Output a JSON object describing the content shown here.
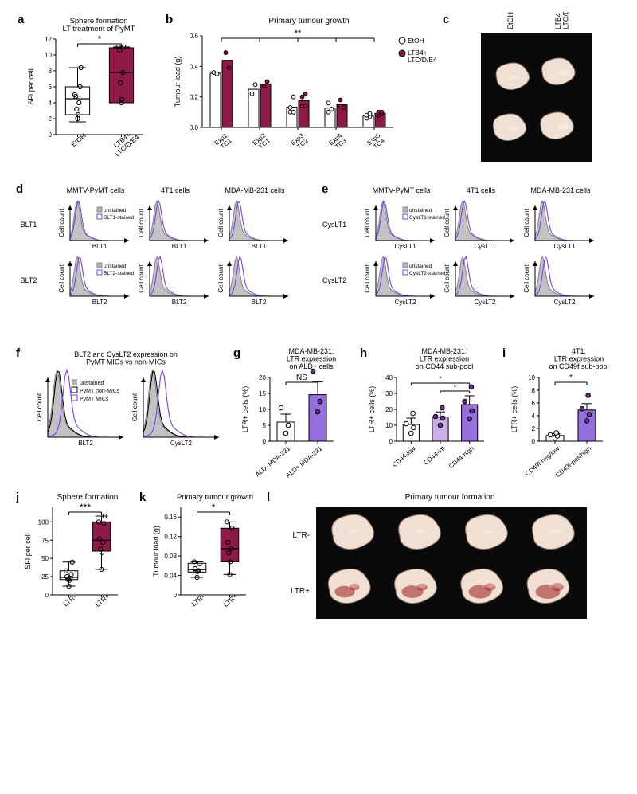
{
  "colors": {
    "accent": "#8d1a47",
    "accent_light": "#b97fa7",
    "purple_fill": "#9370db",
    "purple_light": "#c9aee9",
    "grey_hist": "#b3b3b3",
    "black": "#000000",
    "purple_line": "#7b3ff2",
    "photo_bg": "#0a0a0a"
  },
  "a": {
    "title": "Sphere formation\nLT treatment of PyMT",
    "ylabel": "SFI per cell",
    "groups": [
      "EtOH",
      "LTB4+\nLTC/D/E4"
    ],
    "y_range": [
      0,
      12
    ],
    "y_ticks": [
      0,
      2,
      4,
      6,
      8,
      10,
      12
    ],
    "box": [
      {
        "min": 1.6,
        "q1": 2.5,
        "median": 4.5,
        "q3": 6.0,
        "max": 8.4,
        "points": [
          2.0,
          2.5,
          3.2,
          4.0,
          4.8,
          6.0,
          5.0,
          8.4
        ]
      },
      {
        "min": 4.0,
        "q1": 4.0,
        "median": 7.8,
        "q3": 10.9,
        "max": 11.0,
        "points": [
          4.0,
          4.4,
          6.5,
          7.8,
          10.6,
          11.0,
          11.0
        ]
      }
    ],
    "fill": [
      "#ffffff",
      "#8d1a47"
    ],
    "sig": "*"
  },
  "b": {
    "title": "Primary tumour growth",
    "ylabel": "Tumour load (g)",
    "y_range": [
      0,
      0.6
    ],
    "y_ticks": [
      0,
      0.2,
      0.4,
      0.6
    ],
    "x_labels": [
      "Exp1\nTC1",
      "Exp2\nTC1",
      "Exp3\nTC2",
      "Exp4\nTC3",
      "Exp5\nTC4"
    ],
    "legend": [
      "EtOH",
      "LTB4+\nLTC/D/E4"
    ],
    "bars": [
      {
        "etoh": [
          0.36,
          0.35
        ],
        "lt": [
          0.49,
          0.39
        ]
      },
      {
        "etoh": [
          0.22,
          0.28
        ],
        "lt": [
          0.27,
          0.3
        ]
      },
      {
        "etoh": [
          0.1,
          0.1,
          0.13,
          0.2
        ],
        "lt": [
          0.14,
          0.14,
          0.2,
          0.22
        ]
      },
      {
        "etoh": [
          0.1,
          0.12,
          0.16
        ],
        "lt": [
          0.14,
          0.13,
          0.18
        ]
      },
      {
        "etoh": [
          0.06,
          0.07,
          0.08,
          0.09
        ],
        "lt": [
          0.08,
          0.09,
          0.1,
          0.1
        ]
      }
    ],
    "sig": "**"
  },
  "c": {
    "col_labels": [
      "EtOH",
      "LTB4\nLTC/D/E4"
    ]
  },
  "d": {
    "columns": [
      "MMTV-PyMT cells",
      "4T1 cells",
      "MDA-MB-231 cells"
    ],
    "rows": [
      "BLT1",
      "BLT2"
    ],
    "legend": [
      "unstained",
      "BLT1-stained"
    ],
    "legend2": [
      "unstained",
      "BLT2-stained"
    ],
    "xlab": [
      "BLT1",
      "BLT2"
    ],
    "ylab": "Cell count"
  },
  "e": {
    "columns": [
      "MMTV-PyMT cells",
      "4T1 cells",
      "MDA-MB-231 cells"
    ],
    "rows": [
      "CysLT1",
      "CysLT2"
    ],
    "legend": [
      "unstained",
      "CysLT1-stained"
    ],
    "legend2": [
      "unstained",
      "CysLT2-stained"
    ],
    "xlab": [
      "CysLT1",
      "CysLT2"
    ],
    "ylab": "Cell count"
  },
  "f": {
    "title": "BLT2 and CysLT2 expression on\nPyMT MICs vs non-MICs",
    "legend": [
      "unstained",
      "PyMT non-MICs",
      "PyMT MICs"
    ],
    "xlab": [
      "BLT2",
      "CysLT2"
    ],
    "ylab": "Cell count"
  },
  "g": {
    "title": "MDA-MB-231:\nLTR expression\non ALD+ cells",
    "ylabel": "LTR+ cells (%)",
    "y_range": [
      0,
      20
    ],
    "y_ticks": [
      0,
      5,
      10,
      15,
      20
    ],
    "groups": [
      "ALD- MDA-231",
      "ALD+ MDA-231"
    ],
    "bars": [
      {
        "mean": 6.0,
        "sem": 2.5,
        "points": [
          2.5,
          5.0,
          10.5
        ]
      },
      {
        "mean": 14.6,
        "sem": 4.0,
        "points": [
          9.2,
          12.5,
          22
        ]
      }
    ],
    "fill": [
      "#ffffff",
      "#9370db"
    ],
    "sig": "NS"
  },
  "h": {
    "title": "MDA-MB-231:\nLTR expression\non CD44 sub-pool",
    "ylabel": "LTR+ cells (%)",
    "y_range": [
      0,
      40
    ],
    "y_ticks": [
      0,
      10,
      20,
      30,
      40
    ],
    "groups": [
      "CD44-low",
      "CD44-int",
      "CD44-high"
    ],
    "bars": [
      {
        "mean": 10.5,
        "sem": 4.0,
        "points": [
          5,
          8.5,
          11,
          17.5
        ]
      },
      {
        "mean": 15.2,
        "sem": 3.2,
        "points": [
          10,
          14.5,
          15.5,
          21
        ]
      },
      {
        "mean": 23,
        "sem": 5.5,
        "points": [
          14,
          19,
          25,
          34
        ]
      }
    ],
    "fill": [
      "#ffffff",
      "#c9aee9",
      "#9370db"
    ],
    "sigs": [
      [
        "0",
        "2",
        "*"
      ],
      [
        "1",
        "2",
        "*"
      ]
    ]
  },
  "i": {
    "title": "4T1:\nLTR expression\non CD49f sub-pool",
    "ylabel": "LTR+ cells (%)",
    "y_range": [
      0,
      10
    ],
    "y_ticks": [
      0,
      2,
      4,
      6,
      8,
      10
    ],
    "groups": [
      "CD49f-neg/low",
      "CD49f-pos/high"
    ],
    "bars": [
      {
        "mean": 0.9,
        "sem": 0.3,
        "points": [
          0.5,
          0.8,
          1.0,
          1.3
        ]
      },
      {
        "mean": 4.9,
        "sem": 1.0,
        "points": [
          3.2,
          4.2,
          5.1,
          7.2
        ]
      }
    ],
    "fill": [
      "#ffffff",
      "#9370db"
    ],
    "sig": "*"
  },
  "j": {
    "title": "Sphere formation",
    "ylabel": "SFI per cell",
    "groups": [
      "LTR-",
      "LTR+"
    ],
    "y_range": [
      0,
      120
    ],
    "y_ticks": [
      0,
      25,
      50,
      75,
      100
    ],
    "box": [
      {
        "min": 12,
        "q1": 21,
        "median": 24,
        "q3": 33,
        "max": 45,
        "points": [
          12,
          20,
          21,
          23,
          25,
          28,
          33,
          45
        ]
      },
      {
        "min": 35,
        "q1": 60,
        "median": 75,
        "q3": 100,
        "max": 108,
        "points": [
          35,
          58,
          63,
          72,
          77,
          98,
          100,
          108
        ]
      }
    ],
    "fill": [
      "#ffffff",
      "#8d1a47"
    ],
    "sig": "***"
  },
  "k": {
    "title": "Primary tumour growth",
    "ylabel": "Tumour load (g)",
    "groups": [
      "LTR-",
      "LTR+"
    ],
    "y_range": [
      0,
      0.18
    ],
    "y_ticks": [
      0,
      0.04,
      0.08,
      0.12,
      0.16
    ],
    "box": [
      {
        "min": 0.036,
        "q1": 0.047,
        "median": 0.052,
        "q3": 0.065,
        "max": 0.068,
        "points": [
          0.036,
          0.048,
          0.049,
          0.05,
          0.054,
          0.064,
          0.068
        ]
      },
      {
        "min": 0.042,
        "q1": 0.068,
        "median": 0.095,
        "q3": 0.137,
        "max": 0.15,
        "points": [
          0.042,
          0.068,
          0.086,
          0.095,
          0.108,
          0.137,
          0.15
        ]
      }
    ],
    "fill": [
      "#ffffff",
      "#8d1a47"
    ],
    "sig": "*"
  },
  "l": {
    "title": "Primary tumour formation",
    "row_labels": [
      "LTR-",
      "LTR+"
    ]
  }
}
